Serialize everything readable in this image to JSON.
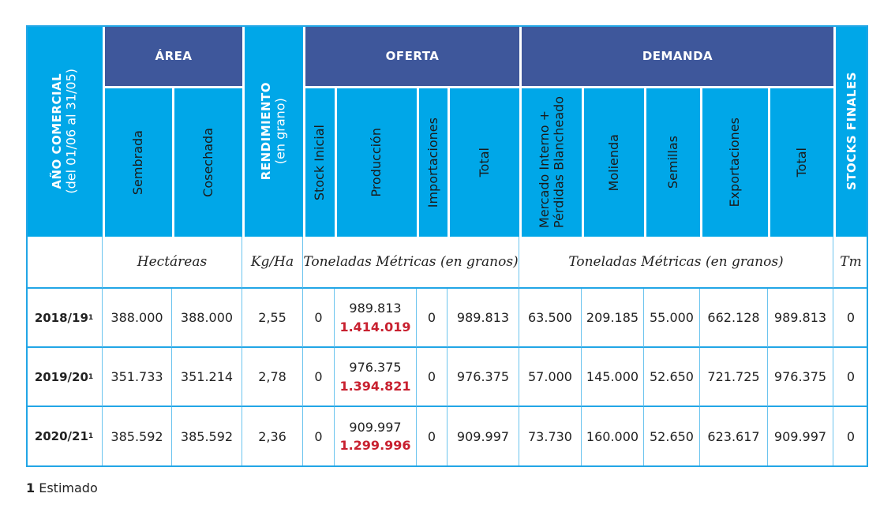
{
  "header": {
    "year_col": {
      "bold": "AÑO COMERCIAL",
      "normal": "(del 01/06 al 31/05)"
    },
    "area": {
      "label": "ÁREA",
      "sub": [
        "Sembrada",
        "Cosechada"
      ]
    },
    "rendimiento": {
      "bold": "RENDIMIENTO",
      "normal": "(en grano)"
    },
    "oferta": {
      "label": "OFERTA",
      "sub": [
        "Stock Inicial",
        "Producción",
        "Importaciones",
        "Total"
      ]
    },
    "demanda": {
      "label": "DEMANDA",
      "sub": [
        "Mercado Interno +\nPérdidas Blancheado",
        "Molienda",
        "Semillas",
        "Exportaciones",
        "Total"
      ]
    },
    "stocks_finales": {
      "label": "STOCKS FINALES"
    }
  },
  "units": {
    "area": "Hectáreas",
    "rendimiento": "Kg/Ha",
    "oferta": "Toneladas Métricas (en granos)",
    "demanda": "Toneladas Métricas (en granos)",
    "stocks": "Tm"
  },
  "rows": [
    {
      "year": "2018/19",
      "note": "1",
      "sembrada": "388.000",
      "cosechada": "388.000",
      "rendimiento": "2,55",
      "stock_inicial": "0",
      "produccion": "989.813",
      "produccion_alt": "1.414.019",
      "importaciones": "0",
      "oferta_total": "989.813",
      "mercado_interno": "63.500",
      "molienda": "209.185",
      "semillas": "55.000",
      "exportaciones": "662.128",
      "demanda_total": "989.813",
      "stocks_finales": "0"
    },
    {
      "year": "2019/20",
      "note": "1",
      "sembrada": "351.733",
      "cosechada": "351.214",
      "rendimiento": "2,78",
      "stock_inicial": "0",
      "produccion": "976.375",
      "produccion_alt": "1.394.821",
      "importaciones": "0",
      "oferta_total": "976.375",
      "mercado_interno": "57.000",
      "molienda": "145.000",
      "semillas": "52.650",
      "exportaciones": "721.725",
      "demanda_total": "976.375",
      "stocks_finales": "0"
    },
    {
      "year": "2020/21",
      "note": "1",
      "sembrada": "385.592",
      "cosechada": "385.592",
      "rendimiento": "2,36",
      "stock_inicial": "0",
      "produccion": "909.997",
      "produccion_alt": "1.299.996",
      "importaciones": "0",
      "oferta_total": "909.997",
      "mercado_interno": "73.730",
      "molienda": "160.000",
      "semillas": "52.650",
      "exportaciones": "623.617",
      "demanda_total": "909.997",
      "stocks_finales": "0"
    }
  ],
  "footnote": {
    "number": "1",
    "text": "Estimado"
  },
  "colors": {
    "header_light": "#00a7e8",
    "header_dark": "#3e579b",
    "highlight_red": "#c8202f"
  }
}
